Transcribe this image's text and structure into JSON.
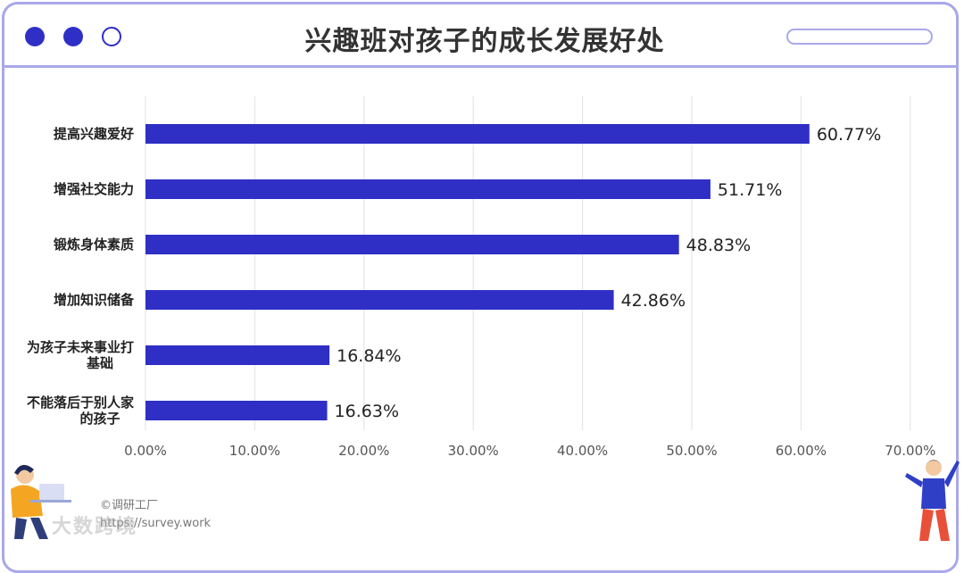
{
  "window": {
    "title": "兴趣班对孩子的成长发展好处"
  },
  "chart_data": {
    "type": "bar",
    "orientation": "horizontal",
    "title": "兴趣班对孩子的成长发展好处",
    "categories": [
      [
        "提高兴趣爱好"
      ],
      [
        "增强社交能力"
      ],
      [
        "锻炼身体素质"
      ],
      [
        "增加知识储备"
      ],
      [
        "为孩子未来事业打",
        "基础"
      ],
      [
        "不能落后于别人家",
        "的孩子"
      ]
    ],
    "values": [
      60.77,
      51.71,
      48.83,
      42.86,
      16.84,
      16.63
    ],
    "value_labels": [
      "60.77%",
      "51.71%",
      "48.83%",
      "42.86%",
      "16.84%",
      "16.63%"
    ],
    "xlim": [
      0,
      70
    ],
    "xticks": [
      0,
      10,
      20,
      30,
      40,
      50,
      60,
      70
    ],
    "xtick_labels": [
      "0.00%",
      "10.00%",
      "20.00%",
      "30.00%",
      "40.00%",
      "50.00%",
      "60.00%",
      "70.00%"
    ],
    "grid": true,
    "bar_color": "#2f2fc6"
  },
  "watermark": {
    "copyright": "©调研工厂",
    "url": "https://survey.work",
    "brand": "大数跨境"
  },
  "colors": {
    "accent": "#2f2fc6",
    "frame": "#a9a8e8"
  }
}
